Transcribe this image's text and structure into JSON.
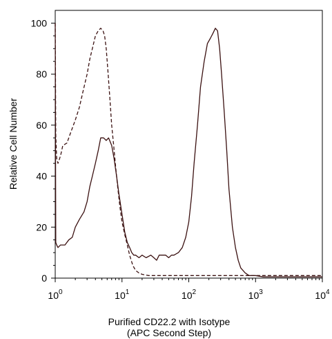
{
  "chart_data": {
    "type": "line",
    "title": "",
    "xlabel_line1": "Purified CD22.2 with Isotype",
    "xlabel_line2": "(APC Second Step)",
    "ylabel": "Relative Cell Number",
    "xscale": "log",
    "xlim": [
      1,
      10000
    ],
    "ylim": [
      0,
      105
    ],
    "grid": false,
    "legend": "none",
    "x_ticks": [
      {
        "base": "10",
        "exp": "0"
      },
      {
        "base": "10",
        "exp": "1"
      },
      {
        "base": "10",
        "exp": "2"
      },
      {
        "base": "10",
        "exp": "3"
      },
      {
        "base": "10",
        "exp": "4"
      }
    ],
    "y_ticks": [
      "0",
      "20",
      "40",
      "60",
      "80",
      "100"
    ],
    "line_color": "#3a1010",
    "series": [
      {
        "style": "dashed",
        "x": [
          1.0,
          1.02,
          1.05,
          1.1,
          1.2,
          1.3,
          1.5,
          1.7,
          2.0,
          2.3,
          2.6,
          3.0,
          3.3,
          3.6,
          4.0,
          4.4,
          4.8,
          5.2,
          5.5,
          5.8,
          6.2,
          6.6,
          7.0,
          7.5,
          8.0,
          8.6,
          9.3,
          10,
          11,
          12,
          13,
          14.5,
          16,
          18,
          20,
          25,
          40,
          100,
          300,
          1000,
          3000,
          10000
        ],
        "y": [
          100,
          56,
          47,
          45,
          48,
          52,
          53,
          57,
          62,
          67,
          73,
          80,
          86,
          90,
          95,
          97,
          98,
          97,
          95,
          90,
          80,
          70,
          60,
          52,
          44,
          36,
          28,
          22,
          17,
          13,
          9,
          5,
          3,
          2,
          1.5,
          1,
          1,
          1,
          1,
          1,
          1,
          1
        ]
      },
      {
        "style": "solid",
        "x": [
          1.0,
          1.02,
          1.05,
          1.1,
          1.2,
          1.4,
          1.6,
          1.8,
          2.0,
          2.3,
          2.7,
          3.0,
          3.3,
          3.6,
          4.0,
          4.4,
          4.8,
          5.3,
          5.8,
          6.3,
          7.0,
          7.6,
          8.3,
          9.0,
          10,
          11,
          12,
          13,
          14,
          15,
          16,
          18,
          20,
          23,
          27,
          30,
          33,
          36,
          40,
          45,
          50,
          55,
          60,
          70,
          80,
          90,
          100,
          110,
          120,
          135,
          150,
          170,
          190,
          210,
          230,
          250,
          270,
          290,
          310,
          340,
          370,
          400,
          450,
          500,
          550,
          600,
          700,
          800,
          1000,
          1300,
          2000,
          3000,
          5000,
          10000
        ],
        "y": [
          100,
          14,
          13,
          12,
          13,
          13,
          15,
          16,
          20,
          23,
          26,
          30,
          36,
          40,
          45,
          50,
          55,
          55,
          54,
          55,
          52,
          47,
          40,
          33,
          25,
          18,
          14,
          12,
          10,
          9,
          9,
          8,
          9,
          8,
          9,
          8,
          7,
          9,
          9,
          9,
          8,
          9,
          9,
          10,
          12,
          16,
          22,
          32,
          45,
          60,
          75,
          85,
          92,
          94,
          96,
          98,
          97,
          90,
          80,
          65,
          50,
          35,
          20,
          12,
          7,
          4,
          2,
          1,
          1,
          0.5,
          0.5,
          0.5,
          0.5,
          0.5
        ]
      }
    ]
  }
}
